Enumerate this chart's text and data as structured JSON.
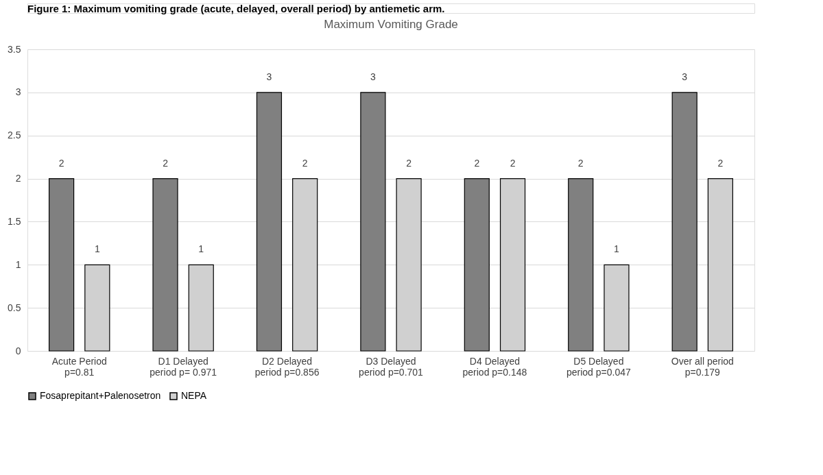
{
  "chart_data": {
    "type": "bar",
    "title": "Maximum Vomiting Grade",
    "annotations": [
      "Figure 1: Maximum vomiting grade (acute, delayed, overall period) by antiemetic arm."
    ],
    "categories": [
      "Acute Period\np=0.81",
      "D1 Delayed\nperiod p= 0.971",
      "D2 Delayed\nperiod p=0.856",
      "D3 Delayed\nperiod p=0.701",
      "D4 Delayed\nperiod p=0.148",
      "D5 Delayed\nperiod p=0.047",
      "Over all period\np=0.179"
    ],
    "series": [
      {
        "name": "Fosaprepitant+Palenosetron",
        "color": "#808080",
        "values": [
          2,
          2,
          3,
          3,
          2,
          2,
          3
        ]
      },
      {
        "name": "NEPA",
        "color": "#d0d0d0",
        "values": [
          1,
          1,
          2,
          2,
          2,
          1,
          2
        ]
      }
    ],
    "ylim": [
      0,
      3.5
    ],
    "yticks": [
      0,
      0.5,
      1,
      1.5,
      2,
      2.5,
      3,
      3.5
    ],
    "grid": "y",
    "legend": "bottom",
    "data_labels": true
  }
}
